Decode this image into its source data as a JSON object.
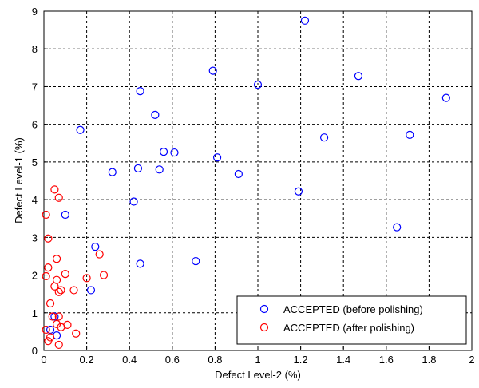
{
  "chart_data": {
    "type": "scatter",
    "xlabel": "Defect Level-2 (%)",
    "ylabel": "Defect Level-1 (%)",
    "xlim": [
      0,
      2
    ],
    "ylim": [
      0,
      9
    ],
    "xticks": [
      "0",
      "0.2",
      "0.4",
      "0.6",
      "0.8",
      "1",
      "1.2",
      "1.4",
      "1.6",
      "1.8",
      "2"
    ],
    "yticks": [
      "0",
      "1",
      "2",
      "3",
      "4",
      "5",
      "6",
      "7",
      "8",
      "9"
    ],
    "grid": true,
    "legend_position": "bottom-right",
    "series": [
      {
        "name": "ACCEPTED (before polishing)",
        "color": "#0000ff",
        "marker": "circle",
        "points": [
          [
            1.22,
            8.75
          ],
          [
            0.79,
            7.42
          ],
          [
            1.0,
            7.05
          ],
          [
            1.47,
            7.28
          ],
          [
            0.45,
            6.88
          ],
          [
            1.88,
            6.7
          ],
          [
            0.52,
            6.25
          ],
          [
            0.17,
            5.85
          ],
          [
            1.31,
            5.65
          ],
          [
            1.71,
            5.72
          ],
          [
            0.56,
            5.27
          ],
          [
            0.61,
            5.25
          ],
          [
            0.81,
            5.12
          ],
          [
            0.32,
            4.73
          ],
          [
            0.44,
            4.83
          ],
          [
            0.54,
            4.8
          ],
          [
            0.91,
            4.68
          ],
          [
            1.19,
            4.22
          ],
          [
            0.42,
            3.95
          ],
          [
            0.1,
            3.6
          ],
          [
            1.65,
            3.27
          ],
          [
            0.24,
            2.75
          ],
          [
            0.45,
            2.3
          ],
          [
            0.71,
            2.37
          ],
          [
            0.22,
            1.6
          ],
          [
            0.05,
            0.9
          ],
          [
            0.03,
            0.55
          ],
          [
            0.06,
            0.4
          ]
        ]
      },
      {
        "name": "ACCEPTED (after polishing)",
        "color": "#ff0000",
        "marker": "circle",
        "points": [
          [
            0.05,
            4.27
          ],
          [
            0.07,
            4.05
          ],
          [
            0.01,
            3.6
          ],
          [
            0.02,
            2.97
          ],
          [
            0.26,
            2.55
          ],
          [
            0.06,
            2.43
          ],
          [
            0.02,
            2.2
          ],
          [
            0.1,
            2.03
          ],
          [
            0.28,
            2.0
          ],
          [
            0.01,
            1.97
          ],
          [
            0.2,
            1.92
          ],
          [
            0.06,
            1.87
          ],
          [
            0.05,
            1.7
          ],
          [
            0.08,
            1.6
          ],
          [
            0.07,
            1.55
          ],
          [
            0.14,
            1.6
          ],
          [
            0.03,
            1.25
          ],
          [
            0.04,
            0.9
          ],
          [
            0.07,
            0.9
          ],
          [
            0.06,
            0.7
          ],
          [
            0.08,
            0.62
          ],
          [
            0.11,
            0.68
          ],
          [
            0.01,
            0.55
          ],
          [
            0.15,
            0.45
          ],
          [
            0.03,
            0.35
          ],
          [
            0.02,
            0.25
          ],
          [
            0.07,
            0.15
          ]
        ]
      }
    ]
  }
}
